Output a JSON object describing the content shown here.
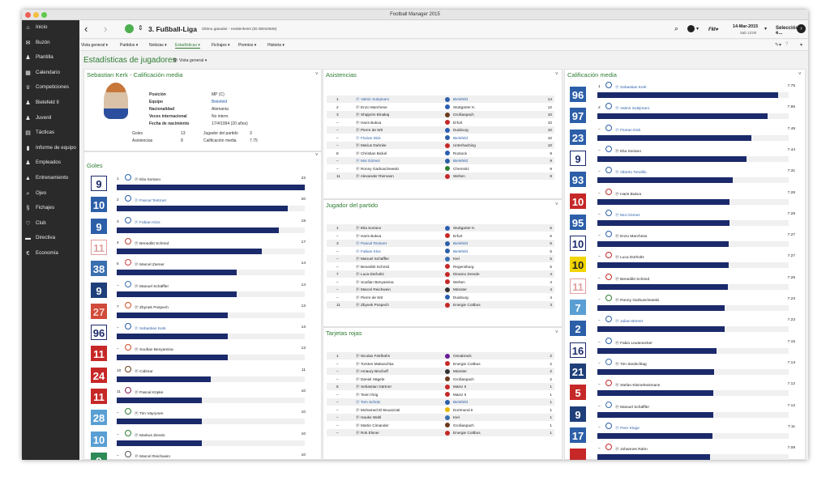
{
  "window": {
    "title": "Football Manager 2015"
  },
  "sidebar": {
    "items": [
      {
        "label": "Inicio",
        "icon": "home-icon"
      },
      {
        "label": "Buzón",
        "icon": "inbox-icon"
      },
      {
        "label": "Plantilla",
        "icon": "squad-icon"
      },
      {
        "label": "Calendario",
        "icon": "calendar-icon"
      },
      {
        "label": "Competiciones",
        "icon": "trophy-icon"
      },
      {
        "label": "Bielefeld II",
        "icon": "team-icon"
      },
      {
        "label": "Juvenil",
        "icon": "youth-icon"
      },
      {
        "label": "Tácticas",
        "icon": "tactics-icon"
      },
      {
        "label": "Informe de equipo",
        "icon": "report-icon"
      },
      {
        "label": "Empleados",
        "icon": "staff-icon"
      },
      {
        "label": "Entrenamiento",
        "icon": "training-icon"
      },
      {
        "label": "Ojeo",
        "icon": "scouting-icon"
      },
      {
        "label": "Fichajes",
        "icon": "transfers-icon"
      },
      {
        "label": "Club",
        "icon": "club-icon"
      },
      {
        "label": "Directiva",
        "icon": "board-icon"
      },
      {
        "label": "Economía",
        "icon": "finance-icon"
      }
    ]
  },
  "topbar": {
    "competition": "3. Fußball-Liga",
    "winner": "Último ganador - Heidenheim (ID:35010926)",
    "date": "14-Mar-2015",
    "day": "Sab 13:00",
    "continue": "Selección de e..."
  },
  "subnav": [
    "Vista general ▾",
    "Partidos ▾",
    "Noticias ▾",
    "Estadísticas ▾",
    "Fichajes ▾",
    "Premios ▾",
    "Historia ▾"
  ],
  "page": {
    "title": "Estadísticas de jugadores",
    "view": "Vista general"
  },
  "profile": {
    "title": "Sebastian Kerk - Calificación media",
    "fields": [
      {
        "k": "Posición",
        "v": "MP (C)"
      },
      {
        "k": "Equipo",
        "v": "Bielefeld"
      },
      {
        "k": "Nacionalidad",
        "v": "Alemania"
      },
      {
        "k": "Veces internacional",
        "v": "No intern."
      },
      {
        "k": "Fecha de nacimiento",
        "v": "17/4/1994 (20 años)"
      }
    ],
    "stats": [
      {
        "k": "Goles",
        "v": "13",
        "k2": "Jugador del partido",
        "v2": "3"
      },
      {
        "k": "Asistencias",
        "v": "8",
        "k2": "Calificación media",
        "v2": "7.75"
      }
    ]
  },
  "goles": {
    "title": "Goles",
    "rows": [
      {
        "shirt": "9",
        "pos": "1",
        "name": "Elia Soriano",
        "value": "22",
        "club": "#2b5fb3",
        "hl": false,
        "sbg": "#fff",
        "sfg": "#1b2a6b",
        "sbd": "#1b2a6b"
      },
      {
        "shirt": "10",
        "pos": "2",
        "name": "Pascal Testroet",
        "value": "20",
        "club": "#2c5fa8",
        "hl": true,
        "sbg": "#2c5fa8",
        "sfg": "#fff",
        "sbd": "#2c5fa8"
      },
      {
        "shirt": "9",
        "pos": "3",
        "name": "Fabian Klos",
        "value": "19",
        "club": "#2c5fa8",
        "hl": true,
        "sbg": "#2c5fa8",
        "sfg": "#fff",
        "sbd": "#2c5fa8"
      },
      {
        "shirt": "11",
        "pos": "4",
        "name": "Benedikt Schmid",
        "value": "17",
        "club": "#c0392b",
        "hl": false,
        "sbg": "#fff",
        "sfg": "#e0a0a0",
        "sbd": "#e0a0a0"
      },
      {
        "shirt": "38",
        "pos": "5",
        "name": "Marcel Ziemer",
        "value": "14",
        "club": "#d04040",
        "hl": false,
        "sbg": "#3a6fb0",
        "sfg": "#fff",
        "sbd": "#3a6fb0"
      },
      {
        "shirt": "9",
        "pos": "–",
        "name": "Manuel Schäffler",
        "value": "14",
        "club": "#3a6fb0",
        "hl": false,
        "sbg": "#1f3f7a",
        "sfg": "#fff",
        "sbd": "#1f3f7a"
      },
      {
        "shirt": "27",
        "pos": "7",
        "name": "Zbynek Pospech",
        "value": "13",
        "club": "#d24a2b",
        "hl": false,
        "sbg": "#d04a3a",
        "sfg": "#f8d0c8",
        "sbd": "#d04a3a"
      },
      {
        "shirt": "96",
        "pos": "–",
        "name": "Sebastian Kerk",
        "value": "13",
        "club": "#2c5fa8",
        "hl": true,
        "sbg": "#fff",
        "sfg": "#1b2a6b",
        "sbd": "#1b2a6b"
      },
      {
        "shirt": "11",
        "pos": "–",
        "name": "Soufian Benyamina",
        "value": "13",
        "club": "#d24a2b",
        "hl": false,
        "sbg": "#c62828",
        "sfg": "#fff",
        "sbd": "#c62828"
      },
      {
        "shirt": "24",
        "pos": "10",
        "name": "Cidimar",
        "value": "11",
        "club": "#6b3a1b",
        "hl": false,
        "sbg": "#c62828",
        "sfg": "#fff",
        "sbd": "#c62828"
      },
      {
        "shirt": "11",
        "pos": "11",
        "name": "Pascal Köpke",
        "value": "10",
        "club": "#8a1b5a",
        "hl": false,
        "sbg": "#c62828",
        "sfg": "#fff",
        "sbd": "#c62828"
      },
      {
        "shirt": "28",
        "pos": "–",
        "name": "Tim Väyrynen",
        "value": "10",
        "club": "#2e7d32",
        "hl": false,
        "sbg": "#5a9fd4",
        "sfg": "#fff",
        "sbd": "#5a9fd4"
      },
      {
        "shirt": "10",
        "pos": "–",
        "name": "Markus Ziereis",
        "value": "10",
        "club": "#2e7d32",
        "hl": false,
        "sbg": "#5a9fd4",
        "sfg": "#fff",
        "sbd": "#5a9fd4"
      },
      {
        "shirt": "9",
        "pos": "–",
        "name": "Marcel Reichwein",
        "value": "10",
        "club": "#555",
        "hl": false,
        "sbg": "#2e8b57",
        "sfg": "#fff",
        "sbd": "#2e8b57"
      }
    ]
  },
  "asistencias": {
    "title": "Asistencias",
    "rows": [
      {
        "pos": "1",
        "name": "Valmir Sulejmani",
        "club": "Bielefeld",
        "v": "14",
        "hl": true,
        "cc": "#2c5fa8"
      },
      {
        "pos": "2",
        "name": "Enzo Marchese",
        "club": "Stuttgarter K.",
        "v": "12",
        "hl": false,
        "cc": "#2b5fb3"
      },
      {
        "pos": "3",
        "name": "Shqiprim Binakaj",
        "club": "Großaspach",
        "v": "10",
        "hl": false,
        "cc": "#6b3a1b"
      },
      {
        "pos": "–",
        "name": "Haris Bukva",
        "club": "Erfurt",
        "v": "10",
        "hl": false,
        "cc": "#c62828"
      },
      {
        "pos": "–",
        "name": "Pierre de Wit",
        "club": "Duisburg",
        "v": "10",
        "hl": false,
        "cc": "#2b5fb3"
      },
      {
        "pos": "–",
        "name": "Florian Dick",
        "club": "Bielefeld",
        "v": "10",
        "hl": true,
        "cc": "#2c5fa8"
      },
      {
        "pos": "–",
        "name": "Marius Duhnke",
        "club": "Unterhaching",
        "v": "10",
        "hl": false,
        "cc": "#c62828"
      },
      {
        "pos": "8",
        "name": "Christian Bickel",
        "club": "Rostock",
        "v": "9",
        "hl": false,
        "cc": "#2b5fb3"
      },
      {
        "pos": "–",
        "name": "Moi Gómez",
        "club": "Bielefeld",
        "v": "9",
        "hl": true,
        "cc": "#2c5fa8"
      },
      {
        "pos": "–",
        "name": "Ronny Garbuschewski",
        "club": "Chemnitz",
        "v": "9",
        "hl": false,
        "cc": "#2e7d32"
      },
      {
        "pos": "11",
        "name": "Alexander Riemann",
        "club": "Wehen",
        "v": "8",
        "hl": false,
        "cc": "#c62828"
      }
    ]
  },
  "jugador": {
    "title": "Jugador del partido",
    "rows": [
      {
        "pos": "1",
        "name": "Elia Soriano",
        "club": "Stuttgarter K.",
        "v": "6",
        "hl": false,
        "cc": "#2b5fb3"
      },
      {
        "pos": "–",
        "name": "Haris Bukva",
        "club": "Erfurt",
        "v": "6",
        "hl": false,
        "cc": "#c62828"
      },
      {
        "pos": "3",
        "name": "Pascal Testroet",
        "club": "Bielefeld",
        "v": "5",
        "hl": true,
        "cc": "#2c5fa8"
      },
      {
        "pos": "–",
        "name": "Fabian Klos",
        "club": "Bielefeld",
        "v": "5",
        "hl": true,
        "cc": "#2c5fa8"
      },
      {
        "pos": "–",
        "name": "Manuel Schäffler",
        "club": "Kiel",
        "v": "5",
        "hl": false,
        "cc": "#3a6fb0"
      },
      {
        "pos": "–",
        "name": "Benedikt Schmid",
        "club": "Regensburg",
        "v": "5",
        "hl": false,
        "cc": "#c62828"
      },
      {
        "pos": "7",
        "name": "Luca Dürholtz",
        "club": "Dinamo Dresde",
        "v": "4",
        "hl": false,
        "cc": "#c62828"
      },
      {
        "pos": "–",
        "name": "Soufian Benyamina",
        "club": "Wehen",
        "v": "4",
        "hl": false,
        "cc": "#c62828"
      },
      {
        "pos": "–",
        "name": "Marcel Reichwein",
        "club": "Münster",
        "v": "4",
        "hl": false,
        "cc": "#333"
      },
      {
        "pos": "–",
        "name": "Pierre de Wit",
        "club": "Duisburg",
        "v": "4",
        "hl": false,
        "cc": "#2b5fb3"
      },
      {
        "pos": "11",
        "name": "Zbynek Pospech",
        "club": "Energie Cottbus",
        "v": "3",
        "hl": false,
        "cc": "#c62828"
      }
    ]
  },
  "rojas": {
    "title": "Tarjetas rojas",
    "rows": [
      {
        "pos": "1",
        "name": "Nicolas Feldhahn",
        "club": "Osnabrück",
        "v": "2",
        "hl": false,
        "cc": "#6a1b9a"
      },
      {
        "pos": "–",
        "name": "Torsten Mattuschka",
        "club": "Energie Cottbus",
        "v": "2",
        "hl": false,
        "cc": "#c62828"
      },
      {
        "pos": "–",
        "name": "Amaury Bischoff",
        "club": "Münster",
        "v": "2",
        "hl": false,
        "cc": "#333"
      },
      {
        "pos": "–",
        "name": "Daniel Hägele",
        "club": "Großaspach",
        "v": "2",
        "hl": false,
        "cc": "#6b3a1b"
      },
      {
        "pos": "5",
        "name": "Sebastian Gärtner",
        "club": "Mainz II",
        "v": "1",
        "hl": false,
        "cc": "#c62828"
      },
      {
        "pos": "–",
        "name": "Tevin Ihrig",
        "club": "Mainz II",
        "v": "1",
        "hl": false,
        "cc": "#c62828"
      },
      {
        "pos": "–",
        "name": "Tom Schütz",
        "club": "Bielefeld",
        "v": "1",
        "hl": true,
        "cc": "#2c5fa8"
      },
      {
        "pos": "–",
        "name": "Mohamed El-Bouazzati",
        "club": "Dortmund II",
        "v": "1",
        "hl": false,
        "cc": "#e6b800"
      },
      {
        "pos": "–",
        "name": "Hauke Wahl",
        "club": "Kiel",
        "v": "1",
        "hl": false,
        "cc": "#3a6fb0"
      },
      {
        "pos": "–",
        "name": "Martin Cimander",
        "club": "Großaspach",
        "v": "1",
        "hl": false,
        "cc": "#6b3a1b"
      },
      {
        "pos": "–",
        "name": "Rok Elsner",
        "club": "Energie Cottbus",
        "v": "1",
        "hl": false,
        "cc": "#c62828"
      }
    ]
  },
  "calificacion": {
    "title": "Calificación media",
    "rows": [
      {
        "shirt": "96",
        "pos": "1",
        "name": "Sebastian Kerk",
        "value": "7.75",
        "club": "#2c5fa8",
        "hl": true,
        "sbg": "#2c5fa8",
        "sfg": "#fff",
        "sbd": "#2c5fa8"
      },
      {
        "shirt": "97",
        "pos": "2",
        "name": "Valmir Sulejmani",
        "value": "7.65",
        "club": "#2c5fa8",
        "hl": true,
        "sbg": "#2c5fa8",
        "sfg": "#fff",
        "sbd": "#2c5fa8"
      },
      {
        "shirt": "23",
        "pos": "–",
        "name": "Florian Dick",
        "value": "7.49",
        "club": "#2c5fa8",
        "hl": true,
        "sbg": "#2c5fa8",
        "sfg": "#fff",
        "sbd": "#2c5fa8"
      },
      {
        "shirt": "9",
        "pos": "–",
        "name": "Elia Soriano",
        "value": "7.44",
        "club": "#2b5fb3",
        "hl": false,
        "sbg": "#fff",
        "sfg": "#1b2a6b",
        "sbd": "#1b2a6b"
      },
      {
        "shirt": "93",
        "pos": "–",
        "name": "Alberto Tendillo",
        "value": "7.31",
        "club": "#2c5fa8",
        "hl": true,
        "sbg": "#2c5fa8",
        "sfg": "#fff",
        "sbd": "#2c5fa8"
      },
      {
        "shirt": "10",
        "pos": "–",
        "name": "Haris Bukva",
        "value": "7.28",
        "club": "#c62828",
        "hl": false,
        "sbg": "#c62828",
        "sfg": "#fff",
        "sbd": "#c62828"
      },
      {
        "shirt": "95",
        "pos": "–",
        "name": "Moi Gómez",
        "value": "7.28",
        "club": "#2c5fa8",
        "hl": true,
        "sbg": "#2c5fa8",
        "sfg": "#fff",
        "sbd": "#2c5fa8"
      },
      {
        "shirt": "10",
        "pos": "–",
        "name": "Enzo Marchese",
        "value": "7.27",
        "club": "#2b5fb3",
        "hl": false,
        "sbg": "#fff",
        "sfg": "#1b2a6b",
        "sbd": "#1b2a6b"
      },
      {
        "shirt": "10",
        "pos": "–",
        "name": "Luca Dürholtz",
        "value": "7.27",
        "club": "#c62828",
        "hl": false,
        "sbg": "#f2d400",
        "sfg": "#222",
        "sbd": "#f2d400"
      },
      {
        "shirt": "11",
        "pos": "–",
        "name": "Benedikt Schmid",
        "value": "7.26",
        "club": "#c62828",
        "hl": false,
        "sbg": "#fff",
        "sfg": "#e0a0a0",
        "sbd": "#e0a0a0"
      },
      {
        "shirt": "7",
        "pos": "–",
        "name": "Ronny Garbuschewski",
        "value": "7.23",
        "club": "#2e7d32",
        "hl": false,
        "sbg": "#5a9fd4",
        "sfg": "#fff",
        "sbd": "#5a9fd4"
      },
      {
        "shirt": "2",
        "pos": "–",
        "name": "Julian Börner",
        "value": "7.23",
        "club": "#2c5fa8",
        "hl": true,
        "sbg": "#2c5fa8",
        "sfg": "#fff",
        "sbd": "#2c5fa8"
      },
      {
        "shirt": "16",
        "pos": "–",
        "name": "Fabio Leutenecker",
        "value": "7.15",
        "club": "#2b5fb3",
        "hl": false,
        "sbg": "#fff",
        "sfg": "#1b2a6b",
        "sbd": "#1b2a6b"
      },
      {
        "shirt": "21",
        "pos": "–",
        "name": "Tim Siedschlag",
        "value": "7.13",
        "club": "#3a6fb0",
        "hl": false,
        "sbg": "#1f3f7a",
        "sfg": "#fff",
        "sbd": "#1f3f7a"
      },
      {
        "shirt": "5",
        "pos": "–",
        "name": "Stefan Kleineheismann",
        "value": "7.12",
        "club": "#c62828",
        "hl": false,
        "sbg": "#c62828",
        "sfg": "#fff",
        "sbd": "#c62828"
      },
      {
        "shirt": "9",
        "pos": "–",
        "name": "Manuel Schäffler",
        "value": "7.12",
        "club": "#3a6fb0",
        "hl": false,
        "sbg": "#1f3f7a",
        "sfg": "#fff",
        "sbd": "#1f3f7a"
      },
      {
        "shirt": "17",
        "pos": "–",
        "name": "Peer Kluge",
        "value": "7.11",
        "club": "#2c5fa8",
        "hl": true,
        "sbg": "#2c5fa8",
        "sfg": "#fff",
        "sbd": "#2c5fa8"
      },
      {
        "shirt": "",
        "pos": "–",
        "name": "Johannes Rahn",
        "value": "7.09",
        "club": "#c62828",
        "hl": false,
        "sbg": "#c62828",
        "sfg": "#fff",
        "sbd": "#c62828"
      }
    ]
  },
  "colors": {
    "accent": "#2e7d32",
    "bar": "#1b2a6b",
    "link": "#2c5fa8",
    "sidebar": "#2a2a2a"
  }
}
